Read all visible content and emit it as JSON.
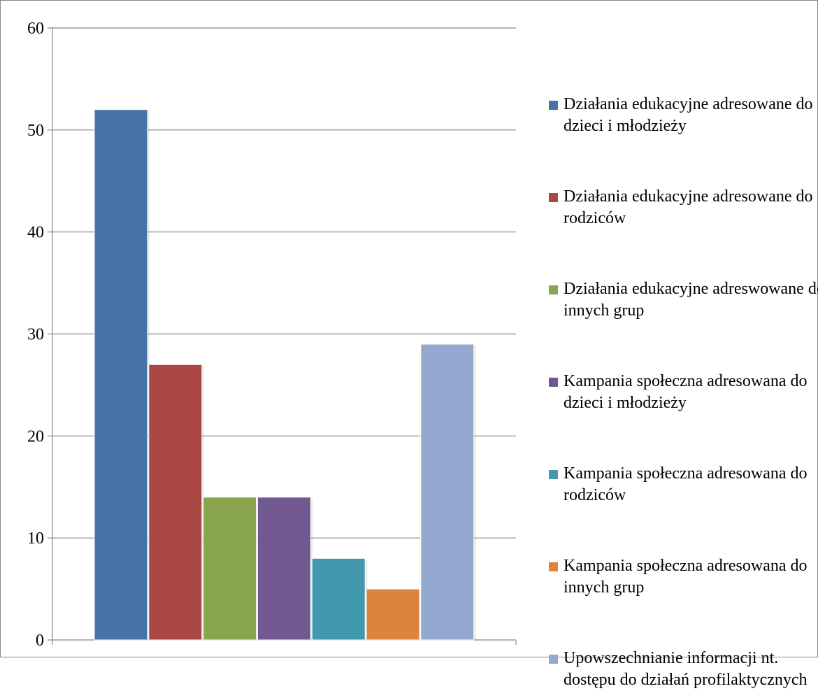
{
  "chart_data": {
    "type": "bar",
    "title": "",
    "xlabel": "",
    "ylabel": "",
    "ylim": [
      0,
      60
    ],
    "yticks": [
      0,
      10,
      20,
      30,
      40,
      50,
      60
    ],
    "grid": true,
    "legend_position": "right",
    "series": [
      {
        "name": "Działania edukacyjne adresowane do dzieci i młodzieży",
        "value": 52,
        "color": "#4572A7"
      },
      {
        "name": "Działania edukacyjne adresowane do rodziców",
        "value": 27,
        "color": "#AA4643"
      },
      {
        "name": "Działania edukacyjne adreswowane do innych grup",
        "value": 14,
        "color": "#89A54E"
      },
      {
        "name": "Kampania społeczna adresowana do dzieci i młodzieży",
        "value": 14,
        "color": "#71588F"
      },
      {
        "name": "Kampania społeczna adresowana do rodziców",
        "value": 8,
        "color": "#4198AF"
      },
      {
        "name": "Kampania społeczna adresowana do innych grup",
        "value": 5,
        "color": "#DB843D"
      },
      {
        "name": "Upowszechnianie informacji nt. dostępu do działań profilaktycznych",
        "value": 29,
        "color": "#93A9CF"
      }
    ]
  }
}
